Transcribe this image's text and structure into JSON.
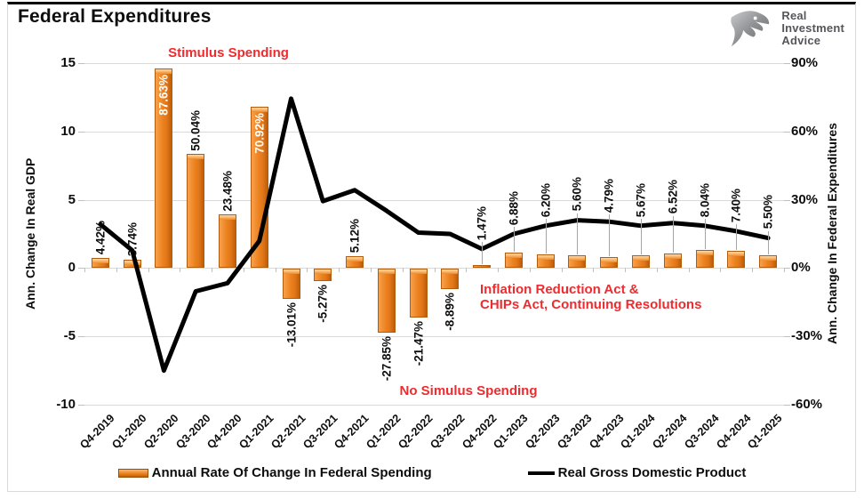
{
  "header": {
    "title": "Federal Expenditures",
    "logo": {
      "icon": "eagle-icon",
      "line1": "Real",
      "line2": "Investment",
      "line3": "Advice"
    }
  },
  "chart_data": {
    "type": "bar",
    "subtype": "combo bar+line, dual axis",
    "categories": [
      "Q4-2019",
      "Q1-2020",
      "Q2-2020",
      "Q3-2020",
      "Q4-2020",
      "Q1-2021",
      "Q2-2021",
      "Q3-2021",
      "Q4-2021",
      "Q1-2022",
      "Q2-2022",
      "Q3-2022",
      "Q4-2022",
      "Q1-2023",
      "Q2-2023",
      "Q3-2023",
      "Q4-2023",
      "Q1-2024",
      "Q2-2024",
      "Q3-2024",
      "Q4-2024",
      "Q1-2025"
    ],
    "series": [
      {
        "name": "Annual Rate Of Change In Federal Spending",
        "type": "bar",
        "axis": "right",
        "unit": "%",
        "color": "#ec821f",
        "values": [
          4.42,
          3.74,
          87.63,
          50.04,
          23.48,
          70.92,
          -13.01,
          -5.27,
          5.12,
          -27.85,
          -21.47,
          -8.89,
          1.47,
          6.88,
          6.2,
          5.6,
          4.79,
          5.67,
          6.52,
          8.04,
          7.4,
          5.5
        ],
        "labels": [
          "4.42%",
          "3.74%",
          "87.63%",
          "50.04%",
          "23.48%",
          "70.92%",
          "-13.01%",
          "-5.27%",
          "5.12%",
          "-27.85%",
          "-21.47%",
          "-8.89%",
          "1.47%",
          "6.88%",
          "6.20%",
          "5.60%",
          "4.79%",
          "5.67%",
          "6.52%",
          "8.04%",
          "7.40%",
          "5.50%"
        ],
        "label_modes": [
          "above",
          "above",
          "inside",
          "above",
          "above",
          "inside",
          "below",
          "below",
          "above",
          "below",
          "below",
          "below",
          "leader",
          "leader",
          "leader",
          "leader",
          "leader",
          "leader",
          "leader",
          "leader",
          "leader",
          "leader"
        ]
      },
      {
        "name": "Real Gross Domestic Product",
        "type": "line",
        "axis": "left",
        "color": "#000000",
        "values": [
          3.2,
          1.3,
          -7.5,
          -1.7,
          -1.1,
          2.0,
          12.4,
          4.9,
          5.7,
          4.2,
          2.6,
          2.5,
          1.4,
          2.5,
          3.1,
          3.5,
          3.4,
          3.1,
          3.3,
          3.1,
          2.7,
          2.2
        ]
      }
    ],
    "left_axis": {
      "title": "Ann. Change In Real GDP",
      "ticks": [
        "15",
        "10",
        "5",
        "0",
        "-5",
        "-10"
      ],
      "range": [
        -10,
        15
      ]
    },
    "right_axis": {
      "title": "Ann. Change In Federal Expenditures",
      "ticks": [
        "90%",
        "60%",
        "30%",
        "0%",
        "-30%",
        "-60%"
      ],
      "range": [
        -60,
        90
      ]
    },
    "grid": true,
    "legend_position": "bottom",
    "annotations": [
      {
        "id": "stimulus",
        "text": "Stimulus Spending",
        "color": "#ee2b2e"
      },
      {
        "id": "no-stimulus",
        "text": "No Simulus Spending",
        "color": "#ee2b2e"
      },
      {
        "id": "ira-chips",
        "text": "Inflation Reduction Act &\nCHIPs Act, Continuing Resolutions",
        "color": "#ee2b2e"
      }
    ],
    "legend": [
      {
        "label": "Annual Rate Of Change In Federal Spending",
        "swatch": "bar"
      },
      {
        "label": "Real Gross Domestic Product",
        "swatch": "line"
      }
    ]
  }
}
